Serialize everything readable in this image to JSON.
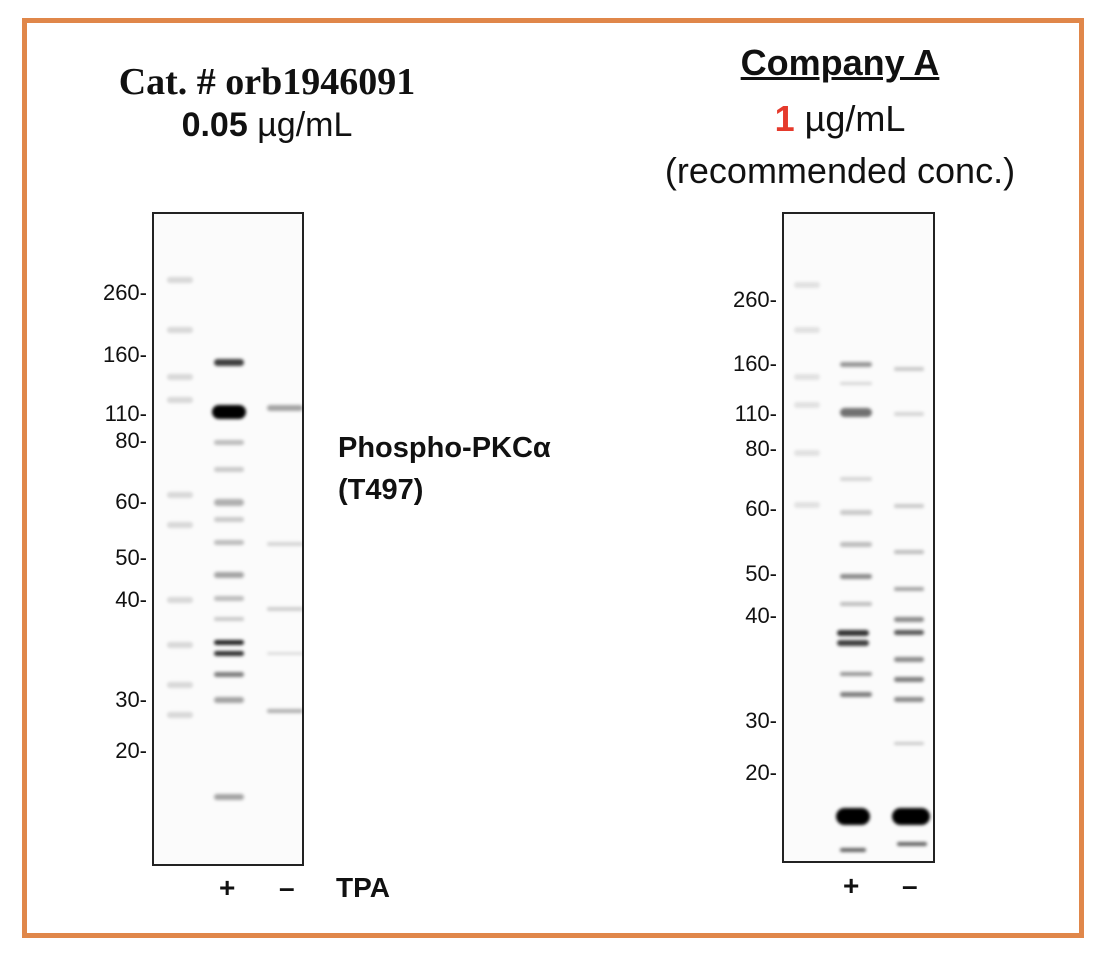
{
  "left_panel": {
    "catalog": "Cat. # orb1946091",
    "concentration_value": "0.05",
    "concentration_unit": "µg/mL",
    "markers": [
      "260-",
      "160-",
      "110-",
      "80-",
      "60-",
      "50-",
      "40-",
      "30-",
      "20-"
    ],
    "lanes": [
      "+",
      "–"
    ],
    "treatment_label": "TPA",
    "target_label": "Phospho-PKCα",
    "target_site": "(T497)"
  },
  "right_panel": {
    "title": "Company A",
    "concentration_value": "1",
    "concentration_unit": "µg/mL",
    "note": "(recommended conc.)",
    "markers": [
      "260-",
      "160-",
      "110-",
      "80-",
      "60-",
      "50-",
      "40-",
      "30-",
      "20-"
    ],
    "lanes": [
      "+",
      "–"
    ]
  },
  "colors": {
    "border": "#e0874a",
    "highlight": "#e53a2c"
  }
}
